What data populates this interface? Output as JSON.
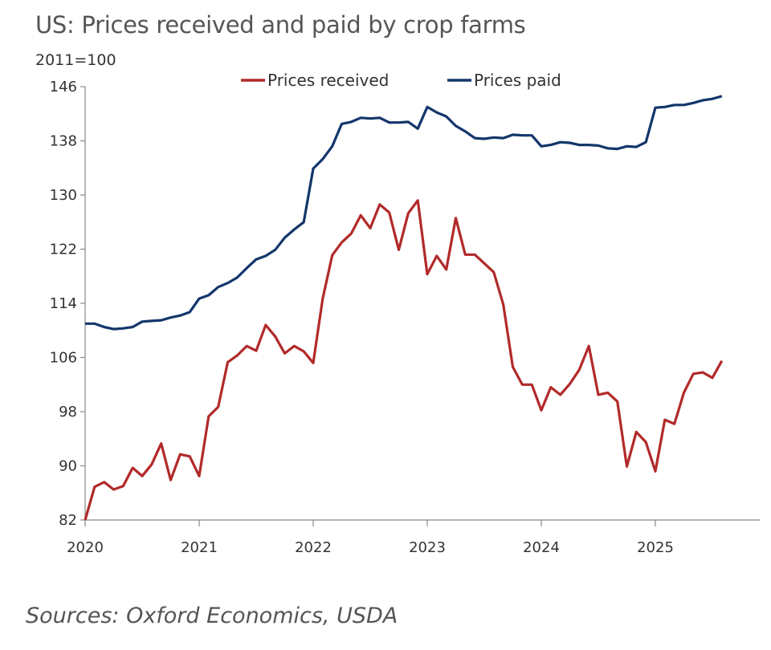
{
  "chart_data": {
    "type": "line",
    "title": "US: Prices received and paid by crop farms",
    "ylabel": "2011=100",
    "source": "Sources: Oxford Economics, USDA",
    "ylim": [
      82,
      146
    ],
    "yticks": [
      "82",
      "90",
      "98",
      "106",
      "114",
      "122",
      "130",
      "138",
      "146"
    ],
    "xticks": [
      "2020",
      "2021",
      "2022",
      "2023",
      "2024",
      "2025"
    ],
    "x_start": "2020-01",
    "x_frequency": "monthly",
    "legend_position": "top",
    "grid": false,
    "series": [
      {
        "name": "Prices received",
        "color": "#b22a2a",
        "values": [
          82,
          86.9,
          87.6,
          86.5,
          87.0,
          89.7,
          88.5,
          90.2,
          93.3,
          87.9,
          91.7,
          91.4,
          88.5,
          97.3,
          98.7,
          105.3,
          106.3,
          107.7,
          107.0,
          110.8,
          109.1,
          106.6,
          107.7,
          106.9,
          105.2,
          114.7,
          121.1,
          123.0,
          124.3,
          127.0,
          125.1,
          128.6,
          127.4,
          121.9,
          127.3,
          129.2,
          118.3,
          121.0,
          119.0,
          126.6,
          121.2,
          121.2,
          119.9,
          118.6,
          113.8,
          104.6,
          102.0,
          102.0,
          98.2,
          101.6,
          100.5,
          102.1,
          104.2,
          107.7,
          100.5,
          100.8,
          99.5,
          89.9,
          95.0,
          93.5,
          89.2,
          96.8,
          96.2,
          100.8,
          103.6,
          103.8,
          103.0,
          105.5
        ]
      },
      {
        "name": "Prices paid",
        "color": "#13366b",
        "values": [
          111.0,
          111.0,
          110.5,
          110.2,
          110.3,
          110.5,
          111.3,
          111.4,
          111.5,
          111.9,
          112.2,
          112.7,
          114.7,
          115.2,
          116.4,
          117.0,
          117.8,
          119.2,
          120.5,
          121.0,
          121.9,
          123.7,
          124.9,
          126.0,
          133.9,
          135.3,
          137.2,
          140.5,
          140.8,
          141.4,
          141.3,
          141.4,
          140.7,
          140.7,
          140.8,
          139.8,
          143.0,
          142.2,
          141.6,
          140.2,
          139.4,
          138.4,
          138.3,
          138.5,
          138.4,
          138.9,
          138.8,
          138.8,
          137.2,
          137.4,
          137.8,
          137.7,
          137.4,
          137.4,
          137.3,
          136.9,
          136.8,
          137.2,
          137.1,
          137.8,
          142.9,
          143.0,
          143.3,
          143.3,
          143.6,
          144.0,
          144.2,
          144.6
        ]
      }
    ]
  }
}
